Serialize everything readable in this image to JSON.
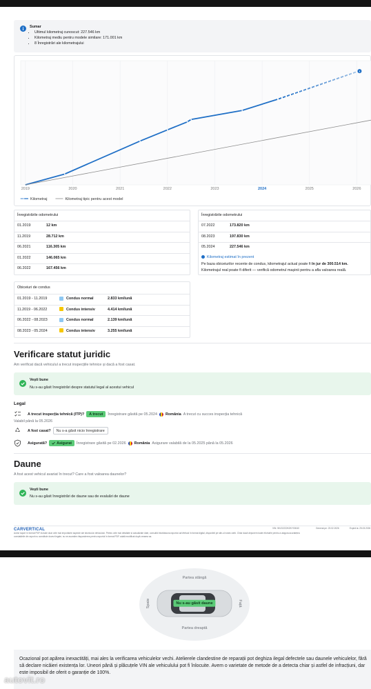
{
  "summary": {
    "title": "Sumar",
    "items": [
      "Ultimul kilometraj cunoscut: 227.546 km",
      "Kilometraj mediu pentru modele similare: 171.001 km",
      "8 Înregistrări ale kilometrajului"
    ]
  },
  "chart_data": {
    "type": "line",
    "xlim": [
      2018.9,
      2026.3
    ],
    "xticks": [
      2019,
      2020,
      2021,
      2022,
      2023,
      2024,
      2025,
      2026
    ],
    "ylim": [
      0,
      330000
    ],
    "grid": true,
    "highlight_xtick": 2024,
    "estimate_from_index": 7,
    "legend": "bottom-left",
    "series": [
      {
        "name": "Kilometraj",
        "color": "#1f6fc6",
        "x": [
          2019.0,
          2019.83,
          2021.42,
          2022.0,
          2022.42,
          2022.5,
          2023.58,
          2024.33,
          2026.0
        ],
        "values": [
          12,
          28712,
          116305,
          146065,
          167456,
          173820,
          197830,
          227546,
          300514
        ]
      },
      {
        "name": "Kilometraj tipic pentru acest model",
        "color": "#8c8c8c",
        "x": [
          2019.0,
          2026.3
        ],
        "values": [
          0,
          172000
        ]
      }
    ]
  },
  "odometer_left": {
    "title": "Înregistrările odometrului",
    "rows": [
      [
        "01.2019",
        "12 km"
      ],
      [
        "11.2019",
        "28.712 km"
      ],
      [
        "06.2021",
        "116.305 km"
      ],
      [
        "01.2022",
        "146.065 km"
      ],
      [
        "06.2022",
        "167.456 km"
      ]
    ]
  },
  "odometer_right": {
    "title": "Înregistrările odometrului",
    "rows": [
      [
        "07.2022",
        "173.820 km"
      ],
      [
        "08.2023",
        "197.830 km"
      ],
      [
        "05.2024",
        "227.546 km"
      ]
    ]
  },
  "estimate": {
    "title": "Kilometraj estimat în prezent",
    "text": "Pe baza obiceiurilor recente de condus, kilometrajul actual poate fi ",
    "text_bold": "în jur de 300.514 km.",
    "text_end": "Kilometrajul real poate fi diferit — verifică odometrul mașinii pentru a afla valoarea reală."
  },
  "driving_habits": {
    "title": "Obiceiuri de condus",
    "rows": [
      {
        "period": "01.2019 - 11.2019",
        "label": "Condus normal",
        "color": "#8ec8f2",
        "value": "2.833 km/lună"
      },
      {
        "period": "11.2019 - 06.2022",
        "label": "Condus intensiv",
        "color": "#f6c700",
        "value": "4.414 km/lună"
      },
      {
        "period": "06.2022 - 08.2023",
        "label": "Condus normal",
        "color": "#8ec8f2",
        "value": "2.139 km/lună"
      },
      {
        "period": "08.2023 - 05.2024",
        "label": "Condus intensiv",
        "color": "#f6c700",
        "value": "3.255 km/lună"
      }
    ]
  },
  "legal": {
    "title": "Verificare statut juridic",
    "subtitle": "Am verificat dacă vehiculul a trecut inspecțiile tehnice și dacă a fost casat.",
    "good_news": {
      "title": "Vești bune",
      "text": "Nu s-au găsit înregistrări despre statutul legal al acestui vehicul"
    },
    "section": "Legal",
    "itp": {
      "question": "A trecut inspecția tehnică (ITP)?",
      "badge": "A trecut",
      "found": "Înregistrare găsită pe 05.2024",
      "country": "România",
      "note": "A trecut cu succes inspecția tehnică",
      "valid": "Valabil până la 05.2026"
    },
    "scrapped": {
      "question": "A fost casat?",
      "badge": "Nu s-a găsit nicio înregistrare"
    },
    "insured": {
      "question": "Asigurată?",
      "badge": "Asigurat",
      "found": "Înregistrare găsită pe 02.2026",
      "country": "România",
      "note": "Asigurare valabilă de la 05.2025 până la 05.2026"
    }
  },
  "damage": {
    "title": "Daune",
    "subtitle": "A fost acest vehicul avariat în trecut? Care a fost valoarea daunelor?",
    "good_news": {
      "title": "Vești bune",
      "text": "Nu s-au găsit înregistrări de daune sau de evaluări de daune"
    }
  },
  "footer": {
    "logo": "CARVERTICAL",
    "vin": "VIN: WV2ZZZ2KZKY00040",
    "generated": "Generat pe: 23.02.2026",
    "expires": "Expiră la: 25.03.2026",
    "disclaimer": [
      "Acest raport în format PDF include doar cele mai importante aspecte ale istoricului vehiculului. Pentru cele mai detaliate și actualizate date, consultă întotdeauna raportul carVertical în format digital, disponibil pe site-ul nostru web. Chiar dacă depunem toate eforturile pentru a asigura acuratețea",
      "constatările din raport nu constituie dovezi legale; nu ne asumăm răspunderea pentru raportul în format PDF odată modificat după crearea sa."
    ]
  },
  "damage_diagram": {
    "left": "Partea stângă",
    "right": "Partea dreaptă",
    "rear": "Spate",
    "front": "Față",
    "badge": "Nu s-au găsit daune"
  },
  "note": "Ocazional pot apărea inexactități, mai ales la verificarea vehiculelor vechi. Atelierele clandestine de reparații pot deghiza ilegal defectele sau daunele vehiculelor, fără să declare nicăieri existența lor. Uneori până și plăcuțele VIN ale vehiculului pot fi înlocuite. Avem o varietate de metode de a detecta chiar și astfel de infracțiuni, dar este imposibil de oferit o garanție de 100%.",
  "watermark": "autovit.ro"
}
